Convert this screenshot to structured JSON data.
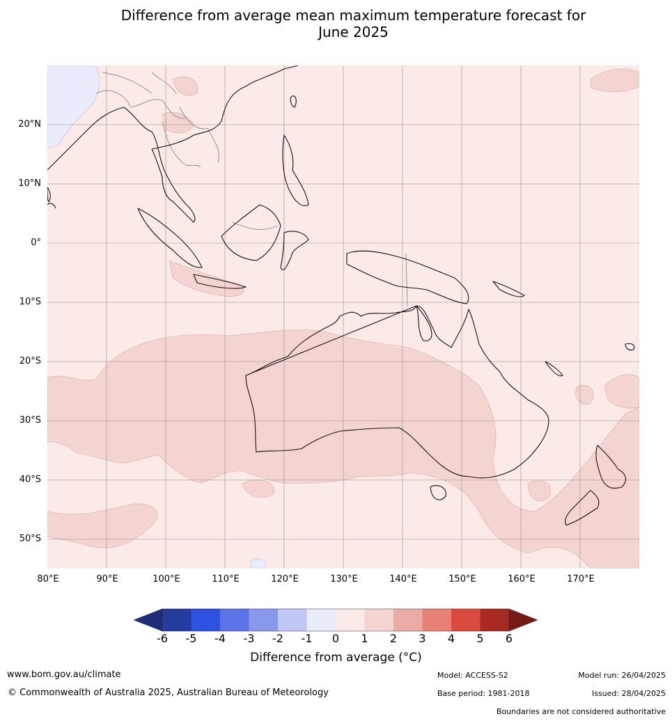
{
  "title_line1": "Difference from average mean maximum temperature forecast for",
  "title_line2": "June 2025",
  "map": {
    "lat_labels": [
      "20°N",
      "10°N",
      "0°",
      "10°S",
      "20°S",
      "30°S",
      "40°S",
      "50°S"
    ],
    "lon_labels": [
      "80°E",
      "90°E",
      "100°E",
      "110°E",
      "120°E",
      "130°E",
      "140°E",
      "150°E",
      "160°E",
      "170°E"
    ],
    "lon_range": [
      80,
      180
    ],
    "lat_range": [
      -55,
      30
    ],
    "background_class": "0 to 1",
    "colors": {
      "bg_0_1": "#fbeae8",
      "class_1_2": "#f4d4d0",
      "class_-1_0": "#e9ecfb",
      "coast": "#111111",
      "border": "#888888",
      "grid": "#8a8a8a"
    }
  },
  "colorbar": {
    "ticks": [
      "-6",
      "-5",
      "-4",
      "-3",
      "-2",
      "-1",
      "0",
      "1",
      "2",
      "3",
      "4",
      "5",
      "6"
    ],
    "colors": [
      "#263b9e",
      "#2d51e0",
      "#5b73e6",
      "#8899ec",
      "#c0c7f4",
      "#e9ecfb",
      "#fbeae8",
      "#f4d4d0",
      "#ebaca6",
      "#e78176",
      "#db4a3e",
      "#a92a22"
    ],
    "under_color": "#1d2d77",
    "over_color": "#7a1a14",
    "label": "Difference from average (°C)"
  },
  "footer": {
    "website": "www.bom.gov.au/climate",
    "copyright": "© Commonwealth of Australia 2025, Australian Bureau of Meteorology",
    "model": "Model: ACCESS-S2",
    "base_period": "Base period: 1981-2018",
    "model_run": "Model run: 26/04/2025",
    "issued": "Issued: 28/04/2025",
    "disclaimer": "Boundaries are not considered authoritative"
  }
}
